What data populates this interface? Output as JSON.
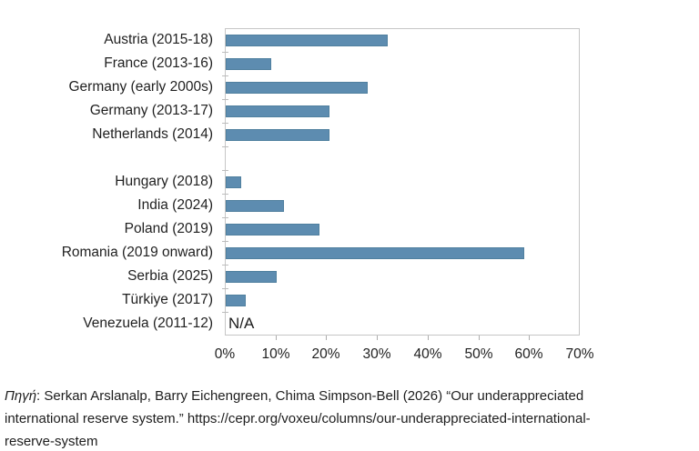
{
  "chart_data": {
    "type": "bar",
    "orientation": "horizontal",
    "title": "",
    "xlabel": "",
    "ylabel": "",
    "categories": [
      "Austria (2015-18)",
      "France (2013-16)",
      "Germany (early 2000s)",
      "Germany (2013-17)",
      "Netherlands (2014)",
      "Hungary (2018)",
      "India (2024)",
      "Poland (2019)",
      "Romania (2019 onward)",
      "Serbia (2025)",
      "Türkiye (2017)",
      "Venezuela (2011-12)"
    ],
    "values": [
      32,
      9,
      28,
      20.5,
      20.5,
      3,
      11.5,
      18.5,
      59,
      10,
      4,
      null
    ],
    "na_text": "N/A",
    "x_tick_labels": [
      "0%",
      "10%",
      "20%",
      "30%",
      "40%",
      "50%",
      "60%",
      "70%"
    ],
    "xlim": [
      0,
      70
    ],
    "group_break_after_index": 4,
    "bar_color": "#5d8cb0",
    "grid": "off",
    "legend": "none"
  },
  "caption": {
    "source_label": "Πηγή",
    "line1_rest": ": Serkan Arslanalp, Barry Eichengreen, Chima Simpson-Bell (2026) “Our underappreciated",
    "line2": "international reserve system.” https://cepr.org/voxeu/columns/our-underappreciated-international-",
    "line3": "reserve-system"
  }
}
